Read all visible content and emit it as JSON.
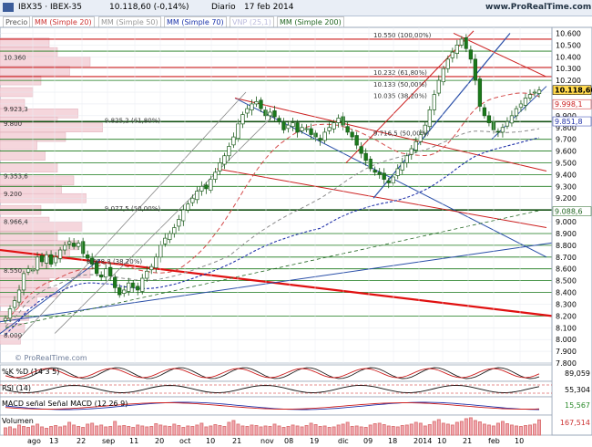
{
  "header": {
    "symbol": "IBX35 · IBEX-35",
    "quote": "10.118,60 (-0,14%)",
    "period": "Diario",
    "date": "17 feb 2014",
    "site": "www.ProRealTime.com",
    "watermark": "© ProRealTime.com"
  },
  "legend": [
    {
      "label": "Precio",
      "color": "#555555"
    },
    {
      "label": "MM (Simple 20)",
      "color": "#cc3333"
    },
    {
      "label": "MM (Simple 50)",
      "color": "#999999"
    },
    {
      "label": "MM (Simple 70)",
      "color": "#1a33aa"
    },
    {
      "label": "VNP (25,1)",
      "color": "#bbbbdd"
    },
    {
      "label": "MM (Simple 200)",
      "color": "#226622"
    }
  ],
  "price_tags": {
    "last": "10.118,60",
    "t1": "9.998,1",
    "t2": "9.851,8",
    "t3": "9.088,6"
  },
  "fib_labels": [
    {
      "text": "10.550 (100,00%)",
      "price": 10550
    },
    {
      "text": "10.232 (61,80%)",
      "price": 10232
    },
    {
      "text": "10.133 (50,00%)",
      "price": 10133
    },
    {
      "text": "10.035 (38,20%)",
      "price": 10035
    },
    {
      "text": "9.825,2 (61,80%)",
      "price": 9825
    },
    {
      "text": "9.716,5 (50,00%)",
      "price": 9716
    },
    {
      "text": "9.077,5 (50,00%)",
      "price": 9077
    },
    {
      "text": "8.628,8 (38,20%)",
      "price": 8628
    }
  ],
  "volume_profile_labels": [
    {
      "text": "10.360",
      "price": 10360
    },
    {
      "text": "9.923,3",
      "price": 9923
    },
    {
      "text": "9.800",
      "price": 9800
    },
    {
      "text": "9.353,6",
      "price": 9353
    },
    {
      "text": "9.200",
      "price": 9200
    },
    {
      "text": "8.966,4",
      "price": 8966
    },
    {
      "text": "8.550",
      "price": 8550
    },
    {
      "text": "8.000",
      "price": 8000
    }
  ],
  "indicators": {
    "pk": {
      "label": "%K  %D (14 3 5)",
      "value": "89,059"
    },
    "rsi": {
      "label": "RSI (14)",
      "value": "55,304"
    },
    "macd": {
      "label": "MACD  señal  Señal  MACD (12 26 9)",
      "value": "15,567"
    },
    "vol": {
      "label": "Volumen",
      "value": "167,514"
    }
  },
  "chart_data": {
    "type": "candlestick",
    "yticks": [
      "10.600",
      "10.500",
      "10.400",
      "10.300",
      "10.200",
      "10.100",
      "10.000",
      "9.900",
      "9.800",
      "9.700",
      "9.600",
      "9.500",
      "9.400",
      "9.300",
      "9.200",
      "9.100",
      "9.000",
      "8.900",
      "8.800",
      "8.700",
      "8.600",
      "8.500",
      "8.400",
      "8.300",
      "8.200",
      "8.100",
      "8.000",
      "7.900",
      "7.800"
    ],
    "ylim": [
      7800,
      10650
    ],
    "xticks": [
      "ago",
      "13",
      "22",
      "sep",
      "11",
      "20",
      "oct",
      "10",
      "21",
      "nov",
      "08",
      "19",
      "dic",
      "09",
      "18",
      "2014",
      "10",
      "21",
      "feb",
      "10"
    ],
    "close_series": [
      8180,
      8260,
      8330,
      8420,
      8560,
      8600,
      8590,
      8700,
      8660,
      8720,
      8640,
      8700,
      8760,
      8800,
      8830,
      8790,
      8820,
      8730,
      8690,
      8640,
      8560,
      8530,
      8600,
      8540,
      8440,
      8380,
      8420,
      8480,
      8440,
      8420,
      8520,
      8580,
      8620,
      8700,
      8800,
      8860,
      8900,
      8950,
      9020,
      9100,
      9150,
      9200,
      9260,
      9300,
      9280,
      9360,
      9420,
      9500,
      9560,
      9640,
      9720,
      9830,
      9910,
      9960,
      10000,
      10020,
      9960,
      9900,
      9930,
      9890,
      9850,
      9780,
      9820,
      9840,
      9760,
      9800,
      9790,
      9740,
      9720,
      9690,
      9760,
      9800,
      9840,
      9880,
      9820,
      9760,
      9720,
      9650,
      9580,
      9520,
      9450,
      9420,
      9400,
      9360,
      9330,
      9380,
      9450,
      9500,
      9560,
      9620,
      9680,
      9740,
      9820,
      9950,
      10080,
      10200,
      10300,
      10380,
      10440,
      10500,
      10550,
      10470,
      10380,
      10200,
      9980,
      9900,
      9840,
      9780,
      9760,
      9800,
      9850,
      9900,
      9960,
      10000,
      10050,
      10080,
      10100,
      10118
    ],
    "volume_series": [
      80,
      90,
      70,
      110,
      95,
      85,
      100,
      120,
      90,
      75,
      95,
      105,
      90,
      100,
      140,
      110,
      95,
      85,
      120,
      130,
      100,
      110,
      90,
      95,
      150,
      100,
      105,
      95,
      85,
      110,
      100,
      90,
      95,
      125,
      110,
      100,
      95,
      120,
      105,
      85,
      100,
      95,
      110,
      130,
      90,
      100,
      115,
      105,
      95,
      140,
      160,
      120,
      100,
      95,
      110,
      105,
      90,
      100,
      95,
      120,
      100,
      85,
      95,
      110,
      100,
      90,
      105,
      130,
      115,
      95,
      100,
      85,
      90,
      110,
      120,
      140,
      95,
      100,
      90,
      85,
      110,
      125,
      130,
      115,
      100,
      95,
      90,
      105,
      110,
      120,
      140,
      130,
      100,
      115,
      150,
      170,
      130,
      120,
      110,
      140,
      150,
      180,
      190,
      160,
      145,
      120,
      110,
      100,
      130,
      150,
      125,
      110,
      100,
      95,
      105,
      110,
      120,
      167
    ]
  }
}
